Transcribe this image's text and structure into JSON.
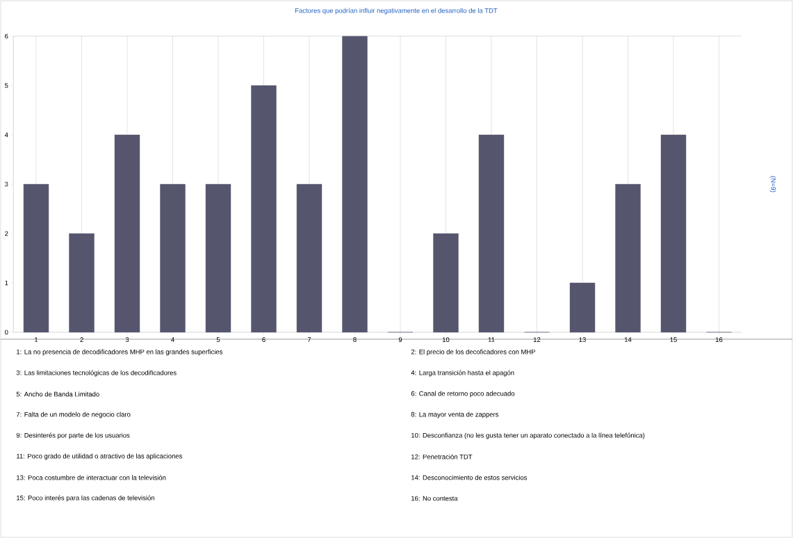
{
  "chart_data": {
    "type": "bar",
    "title": "Factores que podrían influir negativamente en el desarrollo de la TDT",
    "categories": [
      "1",
      "2",
      "3",
      "4",
      "5",
      "6",
      "7",
      "8",
      "9",
      "10",
      "11",
      "12",
      "13",
      "14",
      "15",
      "16"
    ],
    "values": [
      3,
      2,
      4,
      3,
      3,
      5,
      3,
      6,
      0,
      2,
      4,
      0,
      1,
      3,
      4,
      0
    ],
    "color": "#55566e",
    "ylim": [
      0,
      6
    ],
    "yticks": [
      0,
      1,
      2,
      3,
      4,
      5,
      6
    ],
    "grid": "x",
    "annotations": [
      "(N=9)",
      "1: La no presencia de decodificadores MHP en las grandes superficies",
      "2: El precio de los decoficadores con MHP",
      "3: Las limitaciones tecnológicas de los decodificadores",
      "4: Larga transición hasta el apagón",
      "5: Ancho de Banda Limitado",
      "6: Canal de retorno poco adecuado",
      "7: Falta de un modelo de negocio claro",
      "8: La mayor venta de zappers",
      "9: Desinterés por parte de los usuarios",
      "10: Desconfianza (no les gusta tener un aparato conectado a la línea telefónica)",
      "11: Poco grado de utilidad o atractivo de las aplicaciones",
      "12: Penetración TDT",
      "13: Poca costumbre de interactuar con la televisión",
      "14: Desconocimiento de estos servicios",
      "15: Poco interés para las cadenas de televisión",
      "16: No contesta"
    ]
  }
}
